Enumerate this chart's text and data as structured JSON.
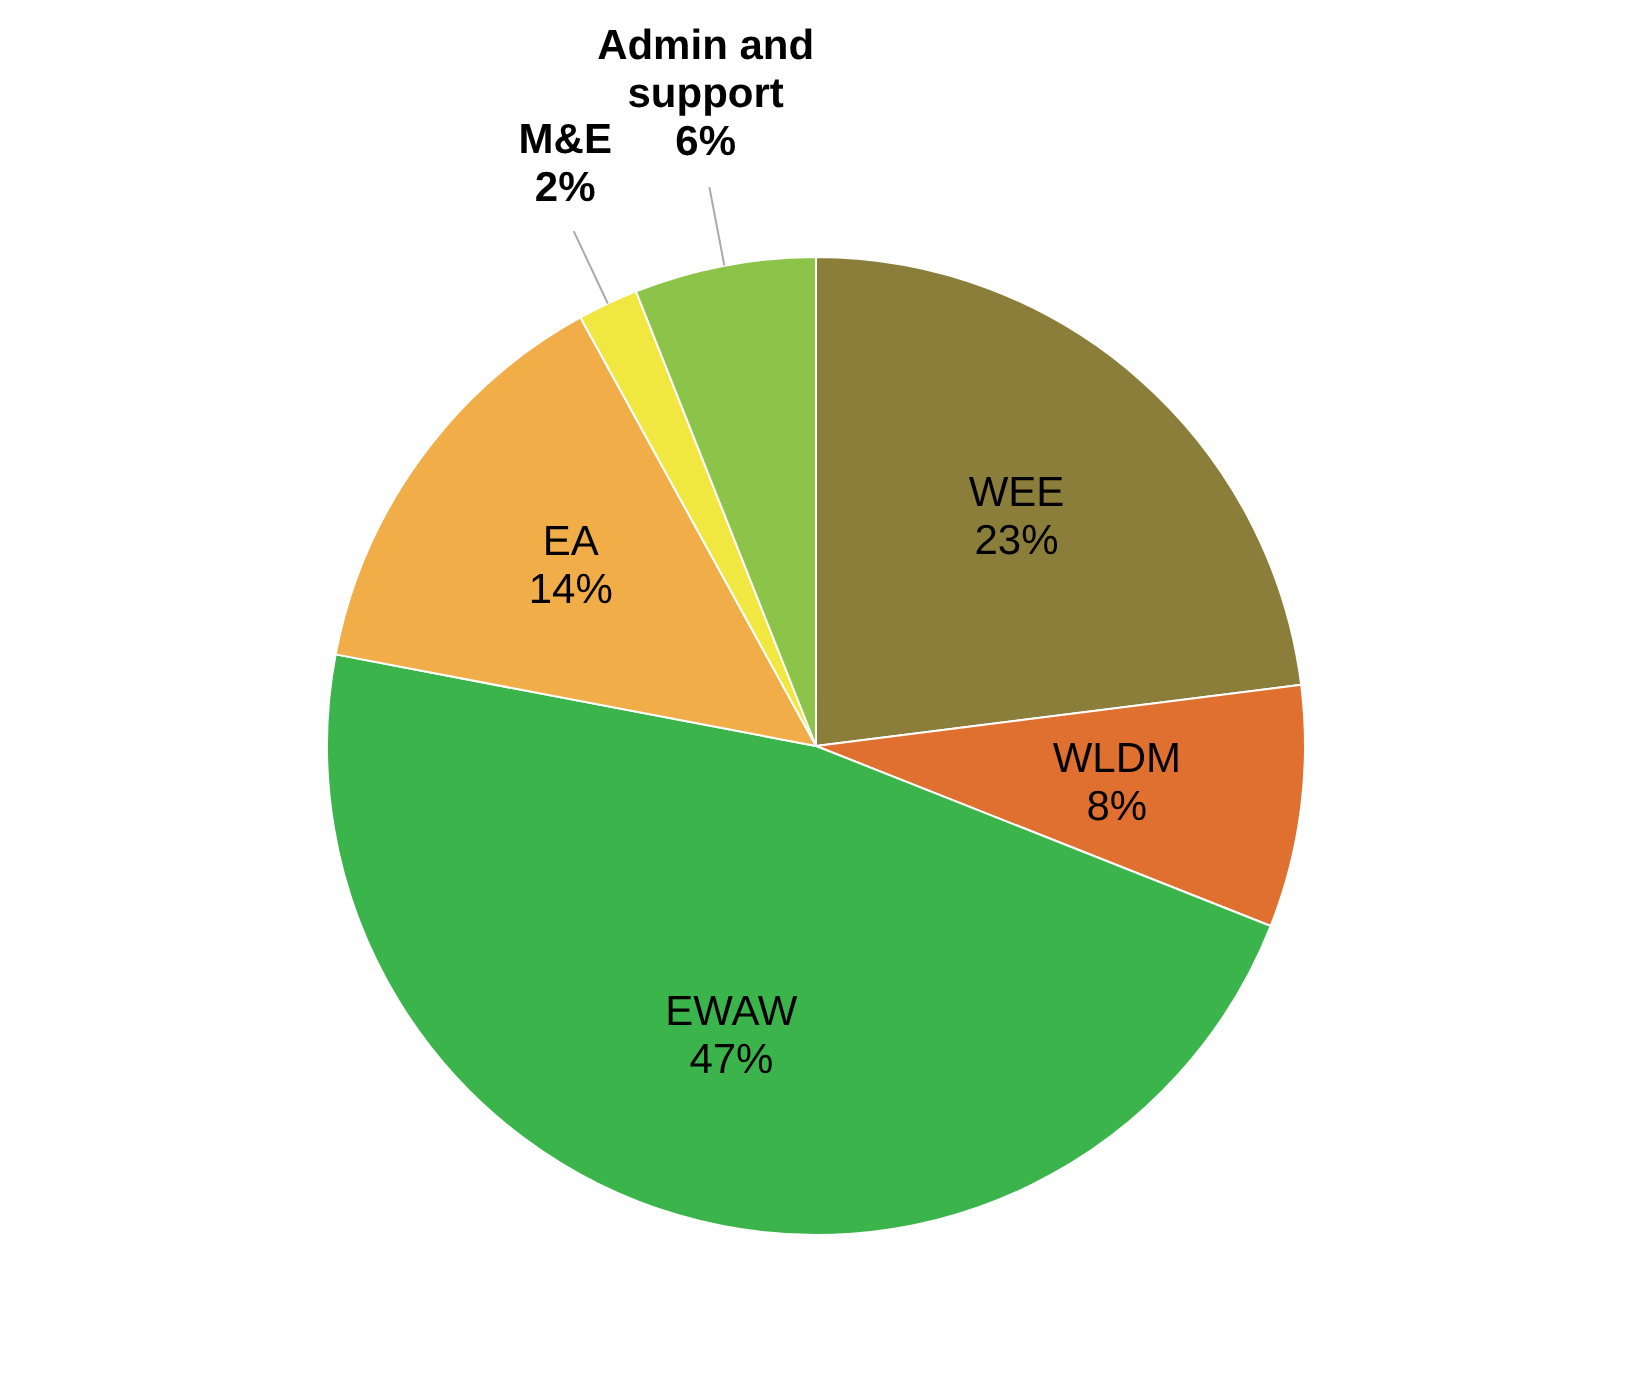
{
  "chart_data": {
    "type": "pie",
    "categories": [
      "WEE",
      "WLDM",
      "EWAW",
      "EA",
      "M&E",
      "Admin and support"
    ],
    "values": [
      23,
      8,
      47,
      14,
      2,
      6
    ],
    "colors": [
      "#8b7d3a",
      "#e07030",
      "#3cb44c",
      "#f0ad48",
      "#f0e840",
      "#8cc44a"
    ],
    "value_labels": [
      "23%",
      "8%",
      "47%",
      "14%",
      "2%",
      "6%"
    ],
    "legend": false
  }
}
